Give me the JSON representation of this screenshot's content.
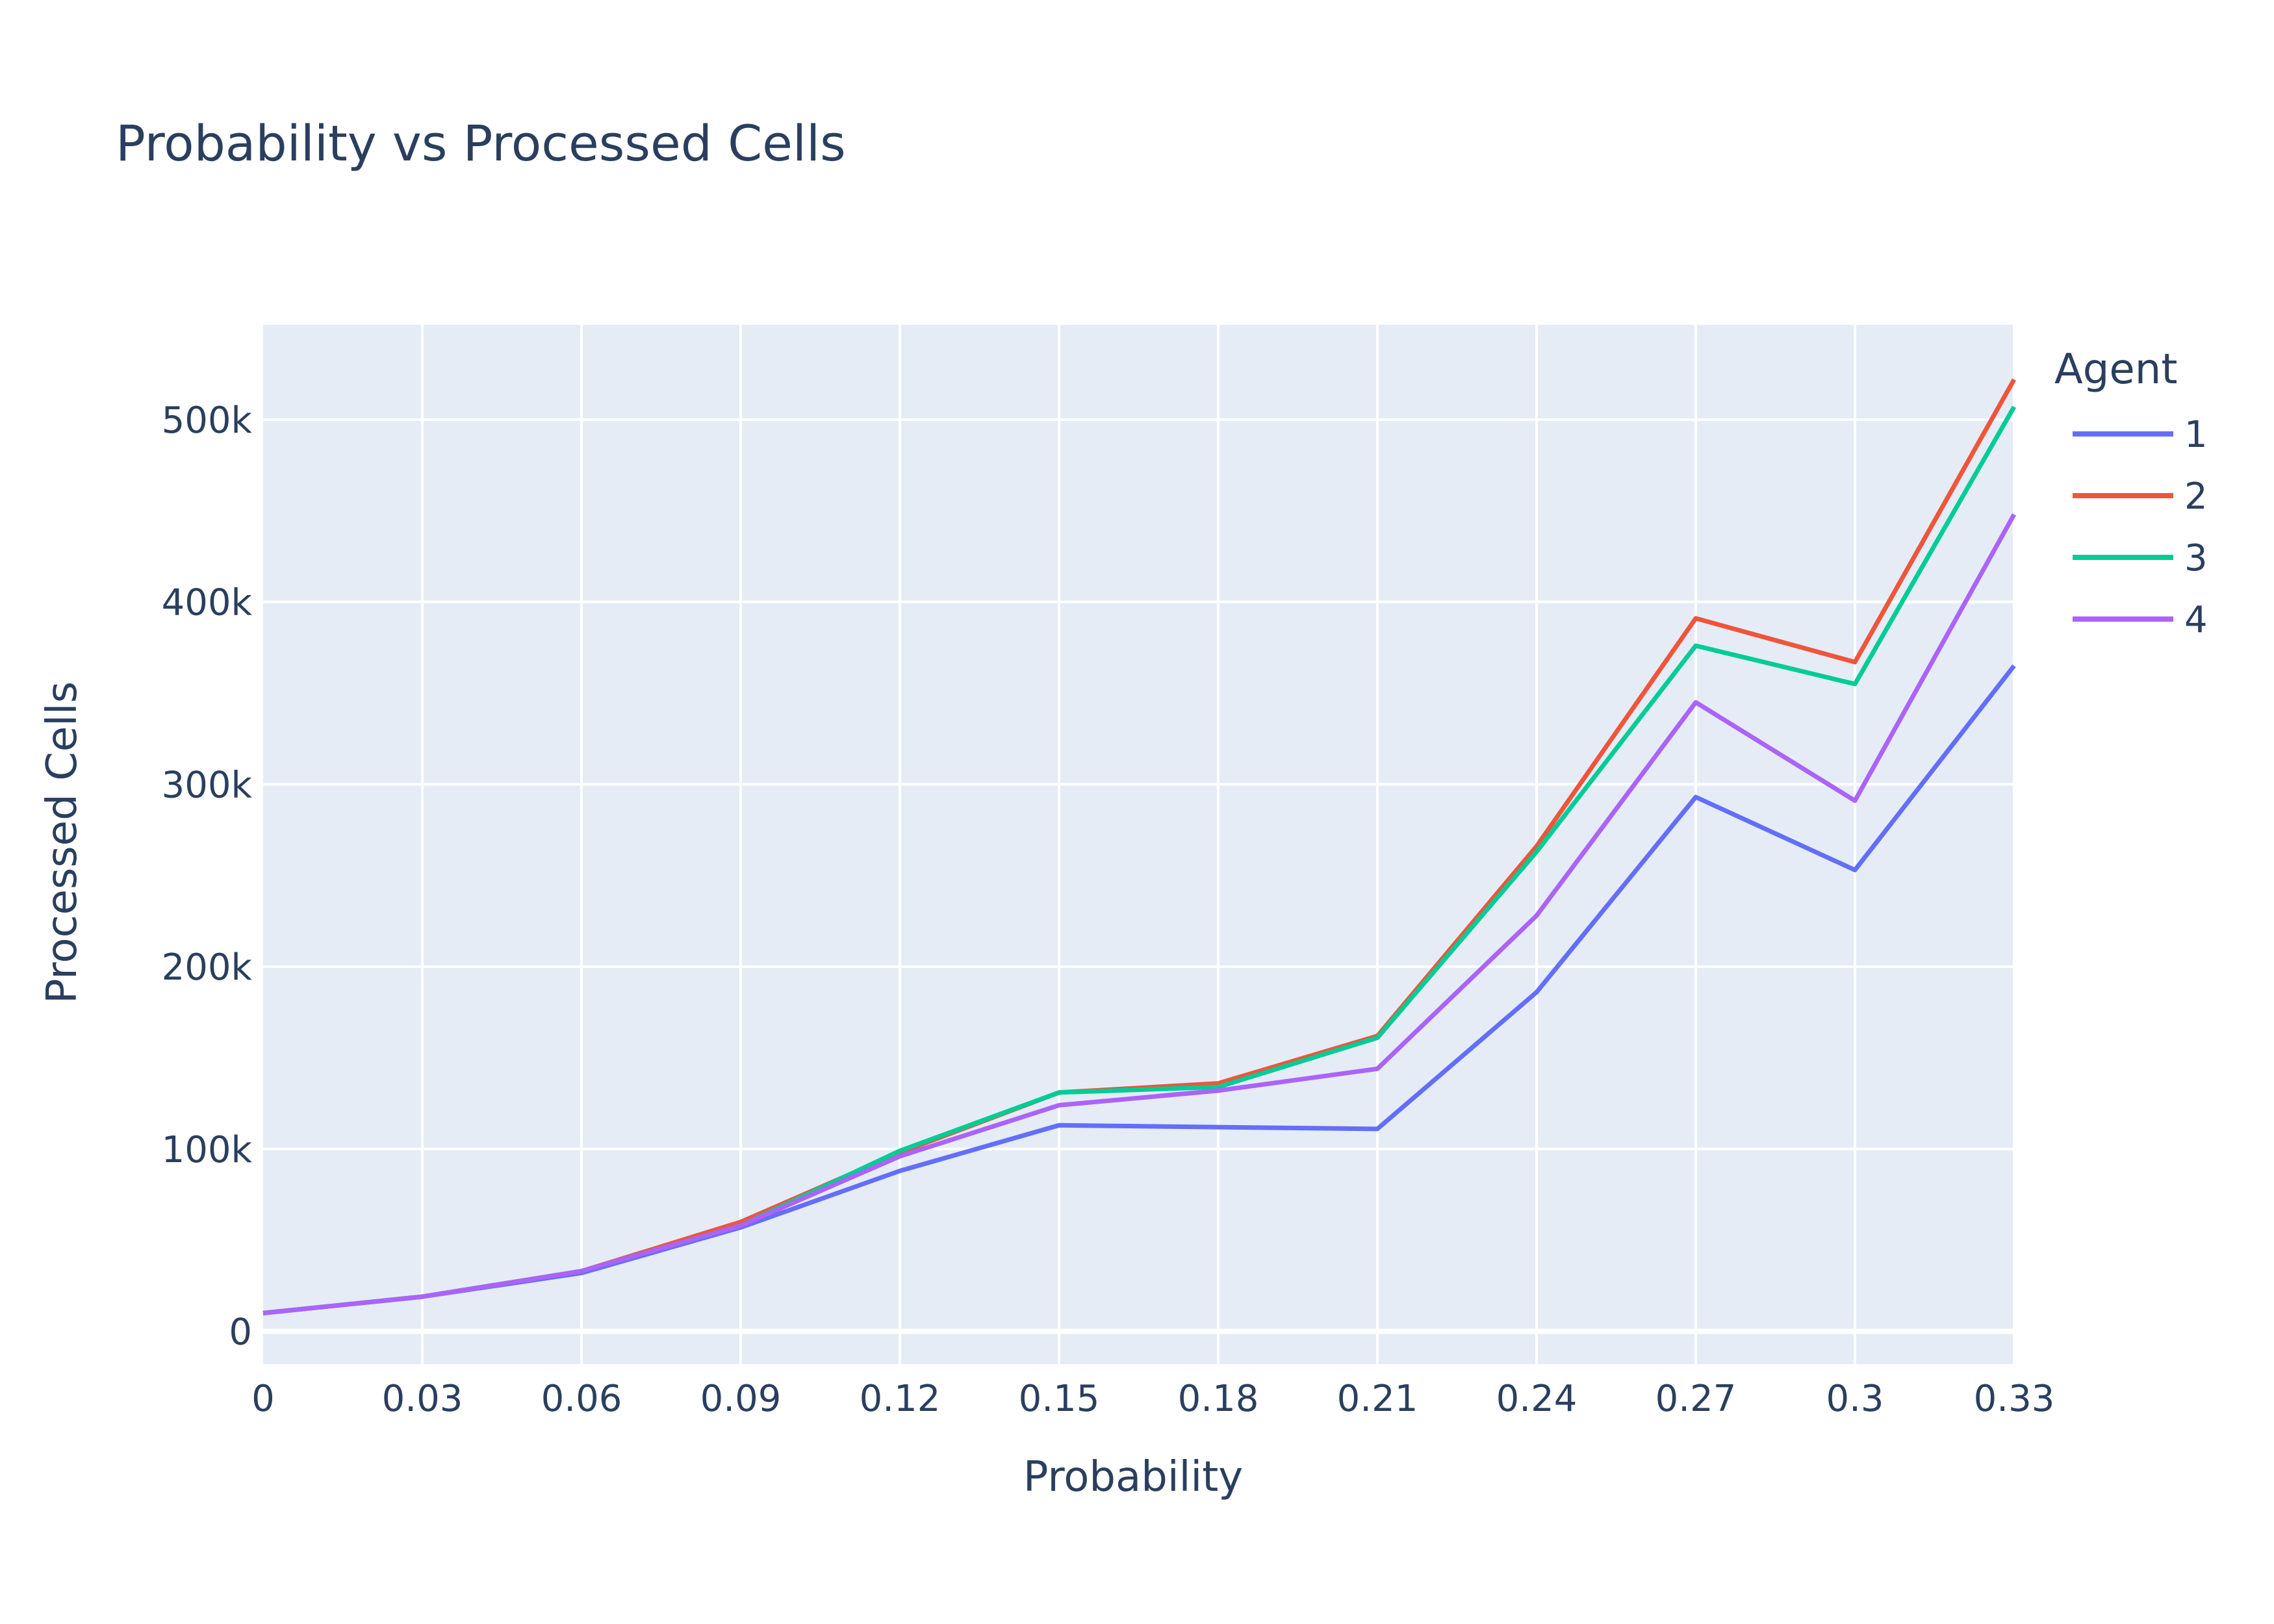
{
  "chart_data": {
    "type": "line",
    "title": "Probability vs Processed Cells",
    "xlabel": "Probability",
    "ylabel": "Processed Cells",
    "xlim": [
      0,
      0.33
    ],
    "ylim": [
      -18000,
      552000
    ],
    "x_ticks": [
      0,
      0.03,
      0.06,
      0.09,
      0.12,
      0.15,
      0.18,
      0.21,
      0.24,
      0.27,
      0.3,
      0.33
    ],
    "x_tick_labels": [
      "0",
      "0.03",
      "0.06",
      "0.09",
      "0.12",
      "0.15",
      "0.18",
      "0.21",
      "0.24",
      "0.27",
      "0.3",
      "0.33"
    ],
    "y_ticks": [
      0,
      100000,
      200000,
      300000,
      400000,
      500000
    ],
    "y_tick_labels": [
      "0",
      "100k",
      "200k",
      "300k",
      "400k",
      "500k"
    ],
    "grid": true,
    "legend": {
      "title": "Agent",
      "placement": "top-right"
    },
    "x": [
      0,
      0.03,
      0.06,
      0.09,
      0.12,
      0.15,
      0.18,
      0.21,
      0.24,
      0.27,
      0.3,
      0.33
    ],
    "series": [
      {
        "name": "1",
        "color": "#636efa",
        "values": [
          10000,
          19000,
          32000,
          57000,
          88000,
          113000,
          112000,
          111000,
          186000,
          293000,
          253000,
          365000
        ]
      },
      {
        "name": "2",
        "color": "#ef553b",
        "values": [
          10000,
          19000,
          33000,
          60000,
          98000,
          131000,
          136000,
          162000,
          266000,
          391000,
          367000,
          522000
        ]
      },
      {
        "name": "3",
        "color": "#00cc96",
        "values": [
          10000,
          19000,
          33000,
          58000,
          99000,
          131000,
          134000,
          161000,
          263000,
          376000,
          355000,
          507000
        ]
      },
      {
        "name": "4",
        "color": "#ab63fa",
        "values": [
          10000,
          19000,
          33000,
          58000,
          96000,
          124000,
          132000,
          144000,
          228000,
          345000,
          291000,
          448000
        ]
      }
    ]
  }
}
